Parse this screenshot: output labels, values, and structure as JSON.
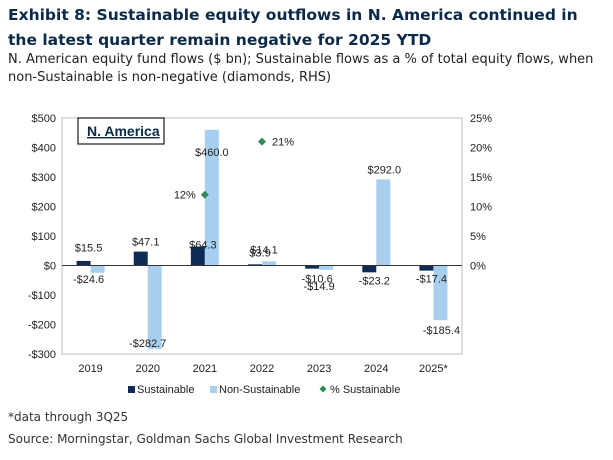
{
  "header": {
    "title": "Exhibit 8: Sustainable equity outflows in N. America continued in the latest quarter remain negative for 2025 YTD",
    "subtitle_line1": "N. American equity fund flows ($ bn); Sustainable flows as a % of total equity flows, when",
    "subtitle_line2": "non-Sustainable is non-negative (diamonds, RHS)"
  },
  "footer": {
    "note": "*data through 3Q25",
    "source": "Source: Morningstar, Goldman Sachs Global Investment Research"
  },
  "colors": {
    "sustainable": "#0d2b55",
    "non_sustainable": "#a9cfee",
    "pct_sustainable": "#2e8b57",
    "title": "#0b2a4a"
  },
  "chart_data": {
    "type": "bar",
    "panel_title": "N. America",
    "categories": [
      "2019",
      "2020",
      "2021",
      "2022",
      "2023",
      "2024",
      "2025*"
    ],
    "series": [
      {
        "name": "Sustainable",
        "values": [
          15.5,
          47.1,
          64.3,
          3.9,
          -10.6,
          -23.2,
          -17.4
        ],
        "labels": [
          "$15.5",
          "$47.1",
          "$64.3",
          "$3.9",
          "-$10.6",
          "-$23.2",
          "-$17.4"
        ]
      },
      {
        "name": "Non-Sustainable",
        "values": [
          -24.6,
          -282.7,
          460.0,
          14.1,
          -14.9,
          292.0,
          -185.4
        ],
        "labels": [
          "-$24.6",
          "-$282.7",
          "$460.0",
          "$14.1",
          "-$14.9",
          "$292.0",
          "-$185.4"
        ]
      }
    ],
    "pct_series": {
      "name": "% Sustainable",
      "axis": "right",
      "points": [
        {
          "category": "2021",
          "value": 12,
          "label": "12%"
        },
        {
          "category": "2022",
          "value": 21,
          "label": "21%"
        }
      ]
    },
    "y_left": {
      "lim": [
        -300,
        500
      ],
      "ticks": [
        500,
        400,
        300,
        200,
        100,
        0,
        -100,
        -200,
        -300
      ],
      "tick_labels": [
        "$500",
        "$400",
        "$300",
        "$200",
        "$100",
        "$0",
        "-$100",
        "-$200",
        "-$300"
      ]
    },
    "y_right": {
      "lim": [
        -10,
        25
      ],
      "ticks": [
        25,
        20,
        15,
        10,
        5,
        0
      ],
      "tick_labels": [
        "25%",
        "20%",
        "15%",
        "10%",
        "5%",
        "0%"
      ]
    },
    "grid": false,
    "legend_position": "bottom"
  }
}
